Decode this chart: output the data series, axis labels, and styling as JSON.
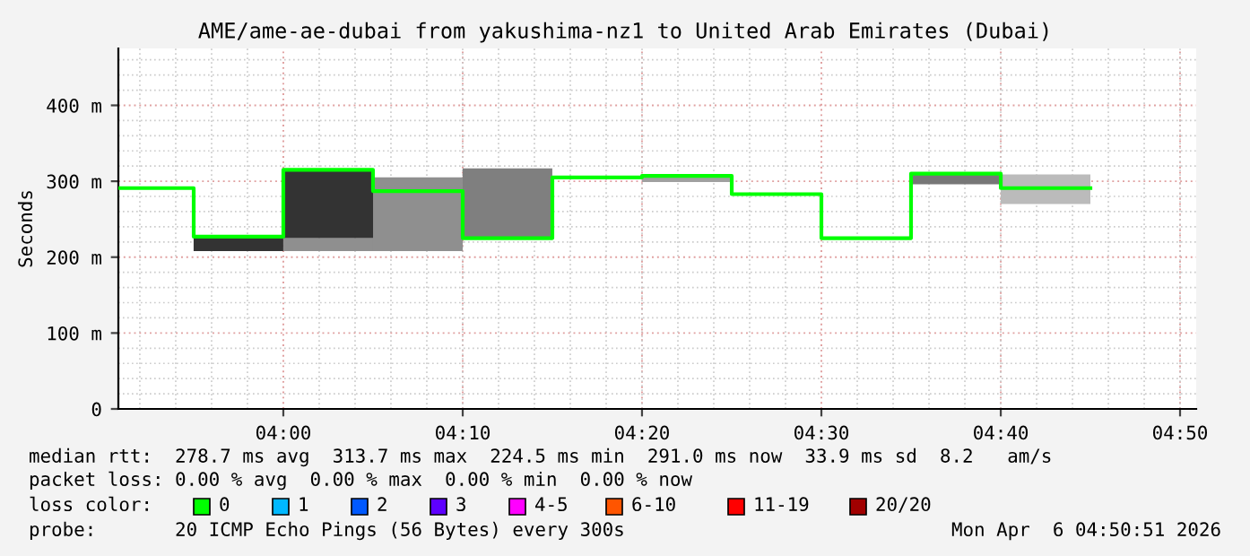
{
  "chart_data": {
    "type": "bar",
    "title": "AME/ame-ae-dubai from yakushima-nz1 to United Arab Emirates (Dubai)",
    "ylabel": "Seconds",
    "xlim": [
      3.8467,
      4.8483
    ],
    "xticks": [
      {
        "value": 4.0,
        "label": "04:00"
      },
      {
        "value": 4.1667,
        "label": "04:10"
      },
      {
        "value": 4.3333,
        "label": "04:20"
      },
      {
        "value": 4.5,
        "label": "04:30"
      },
      {
        "value": 4.6667,
        "label": "04:40"
      },
      {
        "value": 4.8333,
        "label": "04:50"
      }
    ],
    "ylim": [
      0,
      475
    ],
    "yticks": [
      {
        "value": 0,
        "label": "0"
      },
      {
        "value": 100,
        "label": "100 m"
      },
      {
        "value": 200,
        "label": "200 m"
      },
      {
        "value": 300,
        "label": "300 m"
      },
      {
        "value": 400,
        "label": "400 m"
      }
    ],
    "grid": true,
    "series": [
      {
        "x": [
          3.9583,
          4.0417,
          4.125,
          4.2083,
          4.375,
          4.625,
          4.7083
        ],
        "base": [
          208,
          208,
          208,
          225,
          299,
          296,
          270
        ],
        "values": [
          19,
          17,
          97,
          92,
          8,
          14,
          39
        ],
        "colors": [
          "#333333",
          "#8f8f8f",
          "#8f8f8f",
          "#7f7f7f",
          "#a0a0a0",
          "#777777",
          "#bbbbbb"
        ]
      },
      {
        "type": "bar",
        "x": [
          4.0417
        ],
        "base": [
          225
        ],
        "values": [
          90
        ],
        "colors": [
          "#333333"
        ]
      },
      {
        "type": "step",
        "color": "#00ff00",
        "x": [
          3.8467,
          3.9167,
          4.0,
          4.0833,
          4.1667,
          4.25,
          4.3333,
          4.4167,
          4.5,
          4.5833,
          4.6667,
          4.75
        ],
        "values": [
          291,
          227,
          315,
          287,
          225,
          305,
          307,
          283,
          225,
          310,
          291,
          291
        ]
      }
    ],
    "annotations": [
      "median rtt:  278.7 ms avg  313.7 ms max  224.5 ms min  291.0 ms now  33.9 ms sd  8.2   am/s",
      "packet loss: 0.00 % avg  0.00 % max  0.00 % min  0.00 % now",
      "loss color:",
      "0",
      "1",
      "2",
      "3",
      "4-5",
      "6-10",
      "11-19",
      "20/20",
      "probe:       20 ICMP Echo Pings (56 Bytes) every 300s",
      "Mon Apr  6 04:50:51 2026"
    ]
  }
}
